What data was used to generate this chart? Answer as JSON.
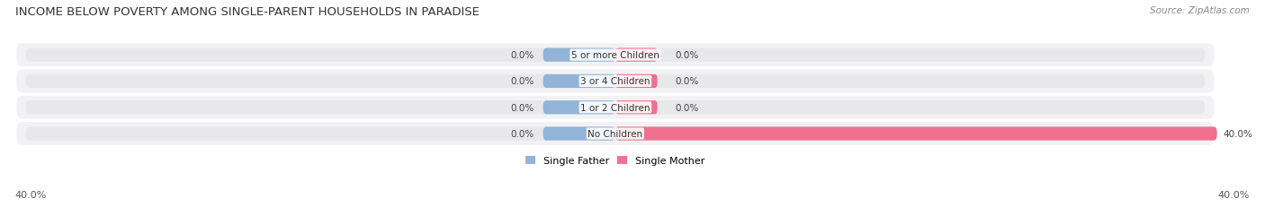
{
  "title": "INCOME BELOW POVERTY AMONG SINGLE-PARENT HOUSEHOLDS IN PARADISE",
  "source": "Source: ZipAtlas.com",
  "categories": [
    "No Children",
    "1 or 2 Children",
    "3 or 4 Children",
    "5 or more Children"
  ],
  "single_father": [
    0.0,
    0.0,
    0.0,
    0.0
  ],
  "single_mother": [
    40.0,
    0.0,
    0.0,
    0.0
  ],
  "max_val": 40.0,
  "father_color": "#92B4D8",
  "mother_color": "#F07090",
  "bar_bg_color": "#E8E8EA",
  "row_bg_color": "#F2F2F4",
  "title_fontsize": 9.5,
  "source_fontsize": 7.5,
  "label_fontsize": 7.5,
  "legend_fontsize": 8,
  "axis_label_fontsize": 8,
  "x_left_label": "40.0%",
  "x_right_label": "40.0%",
  "father_legend": "Single Father",
  "mother_legend": "Single Mother"
}
